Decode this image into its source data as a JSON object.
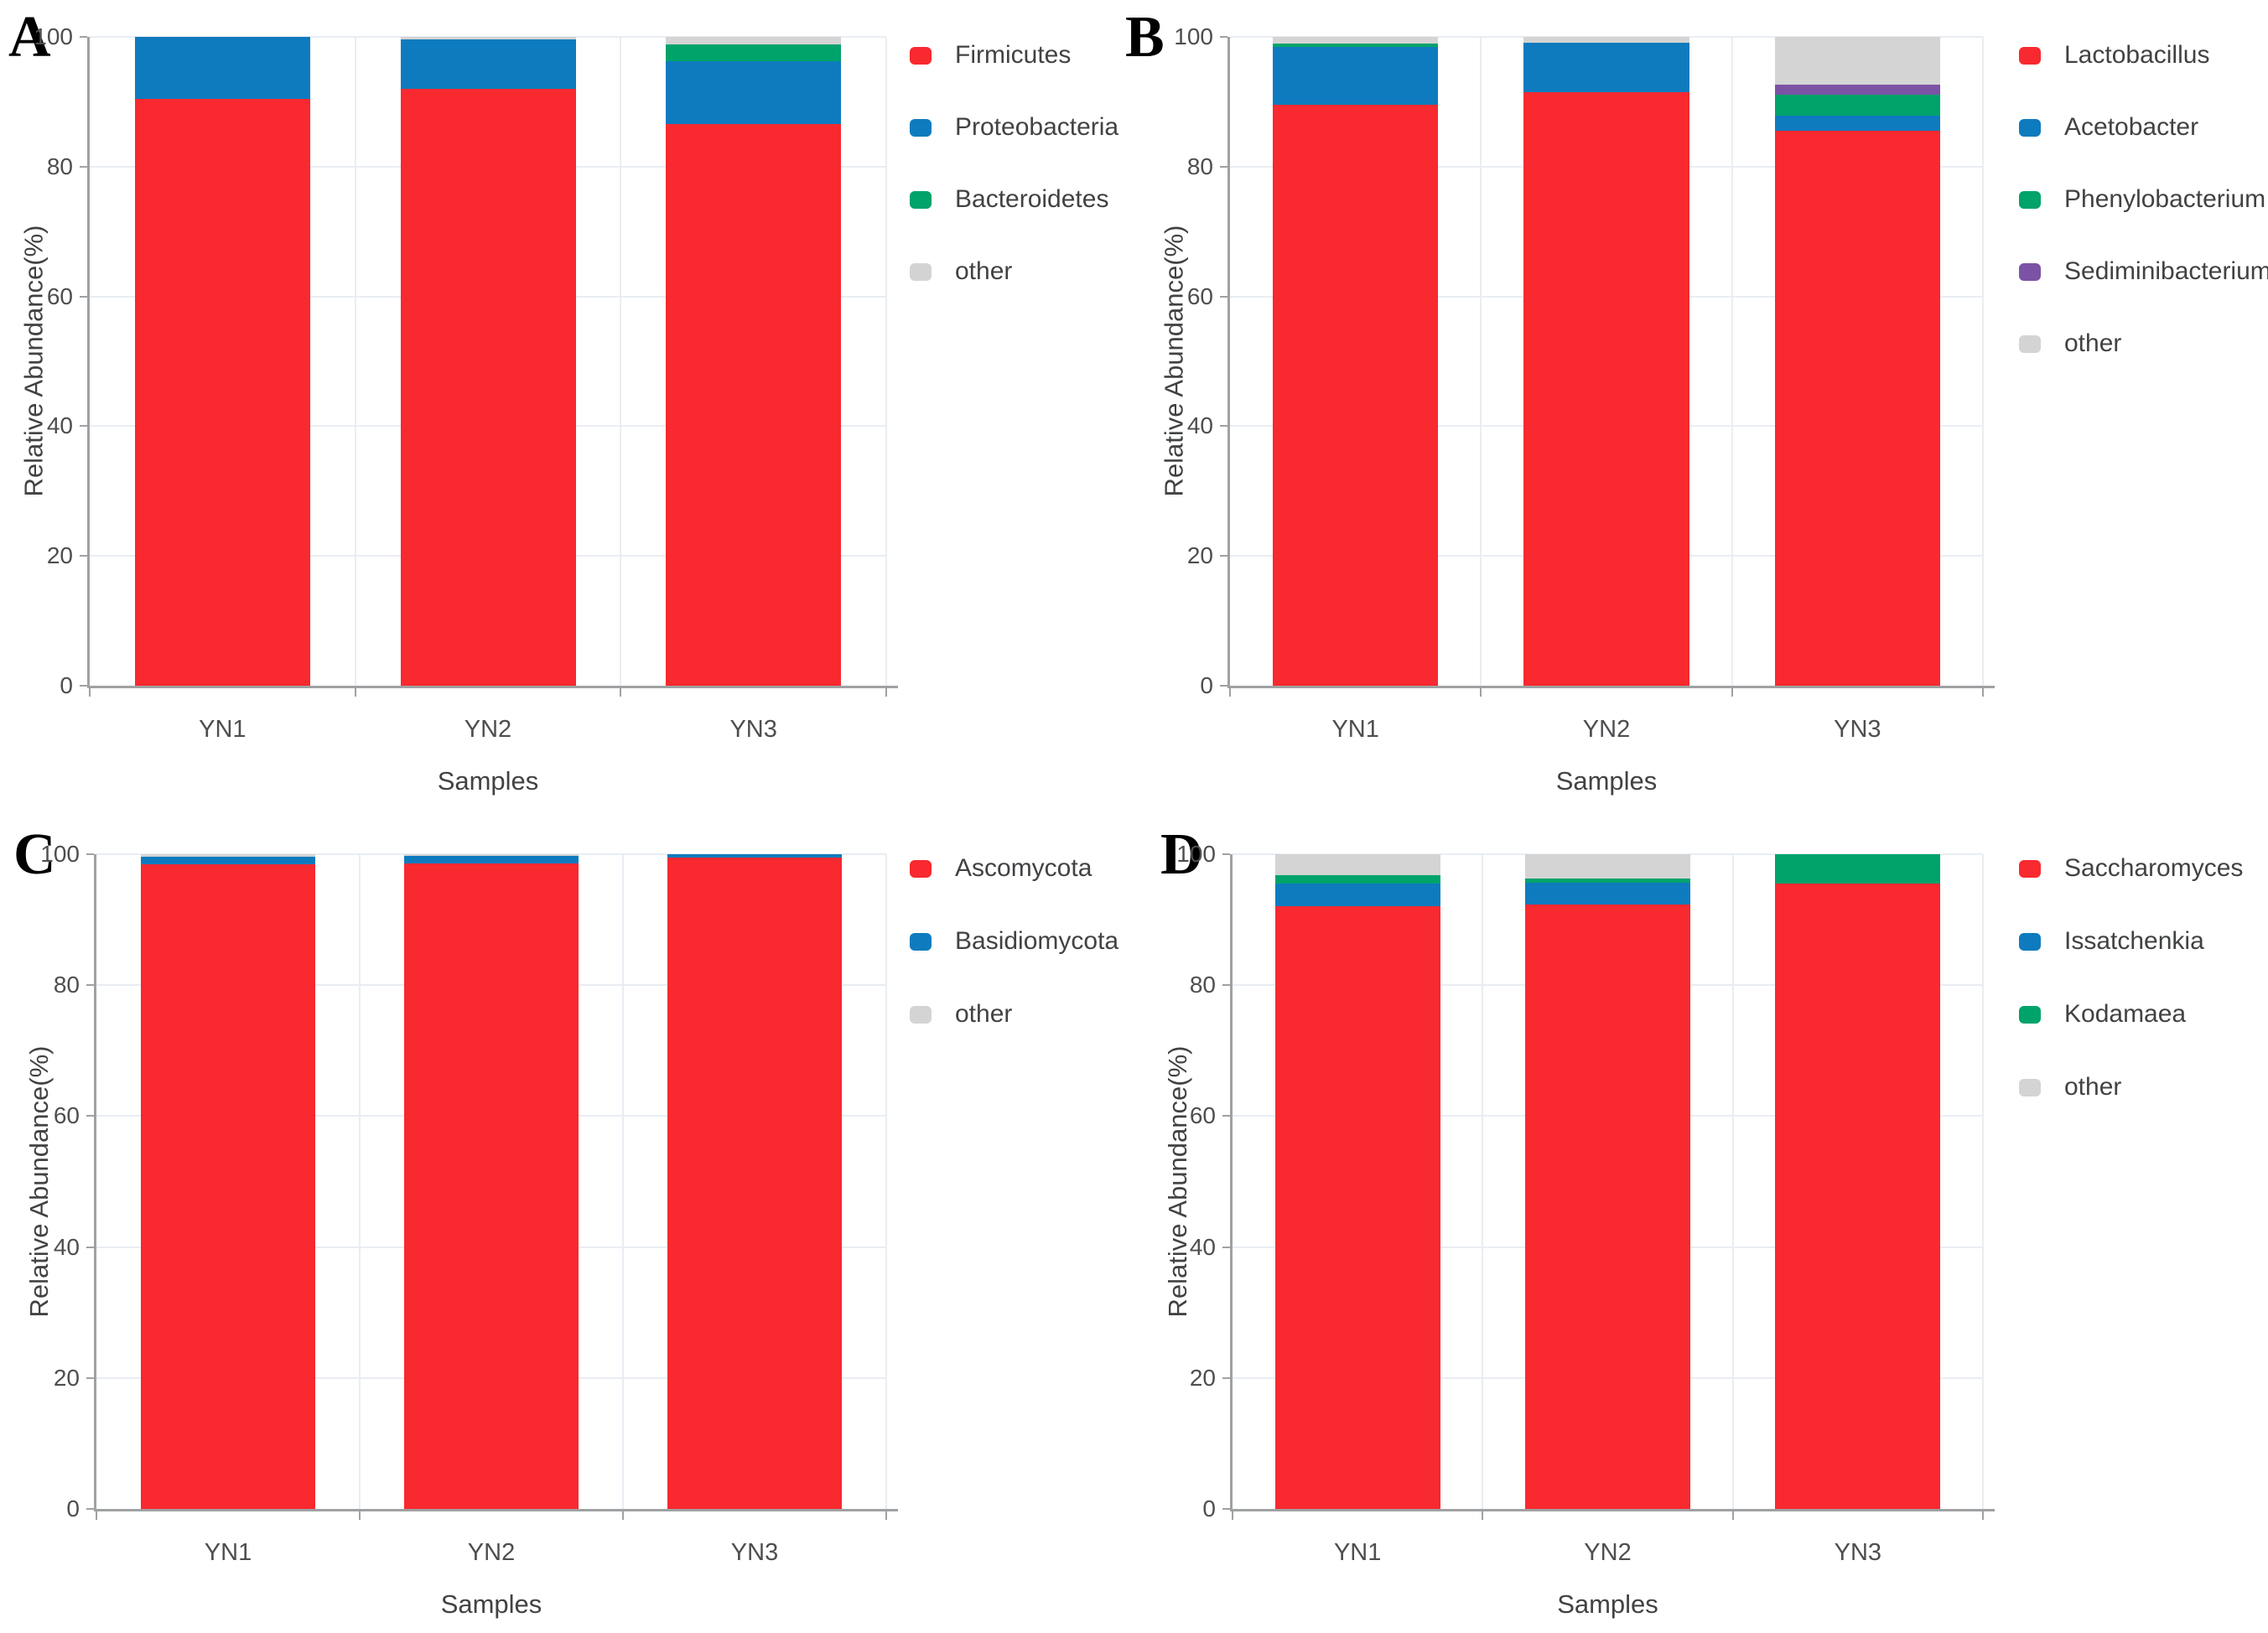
{
  "figure": {
    "background": "#ffffff",
    "shared_y_axis_title": "Relative Abundance(%)",
    "shared_x_axis_title": "Samples"
  },
  "palette": {
    "red": "#F8292F",
    "blue": "#0E7BBE",
    "green": "#00A36A",
    "purple": "#7C52A5",
    "gray": "#D4D4D4",
    "grid": "#E9EDF3",
    "axis": "#9FA1A3",
    "tick_text": "#4D4E50",
    "panel_label_color": "#000000"
  },
  "chart_data": [
    {
      "panel_label": "A",
      "type": "bar",
      "stacked": true,
      "categories": [
        "YN1",
        "YN2",
        "YN3"
      ],
      "xlabel": "Samples",
      "ylabel": "Relative Abundance(%)",
      "ylim": [
        0,
        100
      ],
      "yticks": [
        0,
        20,
        40,
        60,
        80,
        100
      ],
      "grid": true,
      "legend_position": "right",
      "series": [
        {
          "name": "Firmicutes",
          "color": "#F8292F",
          "values": [
            90.5,
            92.0,
            86.5
          ]
        },
        {
          "name": "Proteobacteria",
          "color": "#0E7BBE",
          "values": [
            9.5,
            7.6,
            9.7
          ]
        },
        {
          "name": "Bacteroidetes",
          "color": "#00A36A",
          "values": [
            0,
            0,
            2.6
          ]
        },
        {
          "name": "other",
          "color": "#D4D4D4",
          "values": [
            0,
            0.4,
            1.2
          ]
        }
      ]
    },
    {
      "panel_label": "B",
      "type": "bar",
      "stacked": true,
      "categories": [
        "YN1",
        "YN2",
        "YN3"
      ],
      "xlabel": "Samples",
      "ylabel": "Relative Abundance(%)",
      "ylim": [
        0,
        100
      ],
      "yticks": [
        0,
        20,
        40,
        60,
        80,
        100
      ],
      "grid": true,
      "legend_position": "right",
      "series": [
        {
          "name": "Lactobacillus",
          "color": "#F8292F",
          "values": [
            89.5,
            91.5,
            85.5
          ]
        },
        {
          "name": "Acetobacter",
          "color": "#0E7BBE",
          "values": [
            9.0,
            7.6,
            2.3
          ]
        },
        {
          "name": "Phenylobacterium",
          "color": "#00A36A",
          "values": [
            0.5,
            0,
            3.3
          ]
        },
        {
          "name": "Sediminibacterium",
          "color": "#7C52A5",
          "values": [
            0,
            0,
            1.5
          ]
        },
        {
          "name": "other",
          "color": "#D4D4D4",
          "values": [
            1.0,
            0.9,
            7.4
          ]
        }
      ]
    },
    {
      "panel_label": "C",
      "type": "bar",
      "stacked": true,
      "categories": [
        "YN1",
        "YN2",
        "YN3"
      ],
      "xlabel": "Samples",
      "ylabel": "Relative Abundance(%)",
      "ylim": [
        0,
        100
      ],
      "yticks": [
        0,
        20,
        40,
        60,
        80,
        100
      ],
      "grid": true,
      "legend_position": "right",
      "series": [
        {
          "name": "Ascomycota",
          "color": "#F8292F",
          "values": [
            98.4,
            98.6,
            99.5
          ]
        },
        {
          "name": "Basidiomycota",
          "color": "#0E7BBE",
          "values": [
            1.2,
            1.2,
            0.5
          ]
        },
        {
          "name": "other",
          "color": "#D4D4D4",
          "values": [
            0.4,
            0.2,
            0
          ]
        }
      ]
    },
    {
      "panel_label": "D",
      "type": "bar",
      "stacked": true,
      "categories": [
        "YN1",
        "YN2",
        "YN3"
      ],
      "xlabel": "Samples",
      "ylabel": "Relative Abundance(%)",
      "ylim": [
        0,
        100
      ],
      "yticks": [
        0,
        20,
        40,
        60,
        80,
        100
      ],
      "grid": true,
      "legend_position": "right",
      "series": [
        {
          "name": "Saccharomyces",
          "color": "#F8292F",
          "values": [
            92.0,
            92.3,
            95.5
          ]
        },
        {
          "name": "Issatchenkia",
          "color": "#0E7BBE",
          "values": [
            3.5,
            3.4,
            0
          ]
        },
        {
          "name": "Kodamaea",
          "color": "#00A36A",
          "values": [
            1.3,
            0.6,
            4.5
          ]
        },
        {
          "name": "other",
          "color": "#D4D4D4",
          "values": [
            3.2,
            3.7,
            0
          ]
        }
      ]
    }
  ]
}
